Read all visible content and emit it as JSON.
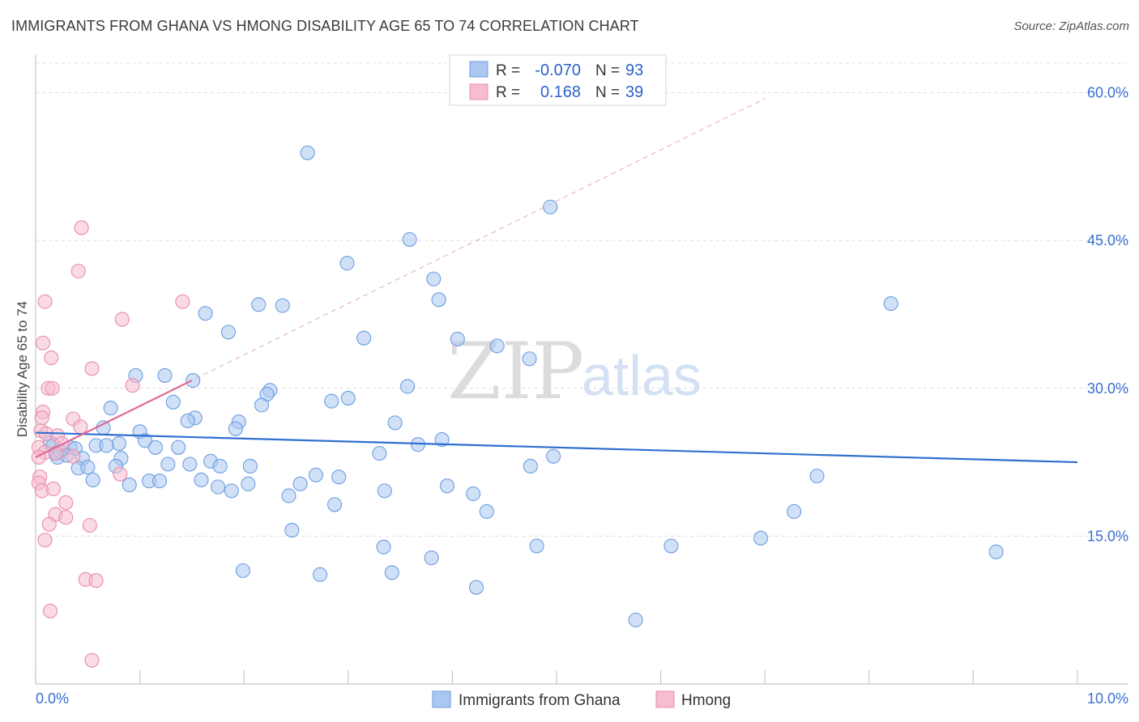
{
  "header": {
    "title": "IMMIGRANTS FROM GHANA VS HMONG DISABILITY AGE 65 TO 74 CORRELATION CHART",
    "source": "Source: ZipAtlas.com"
  },
  "watermark": {
    "zip": "ZIP",
    "atlas": "atlas"
  },
  "colors": {
    "blue_fill": "#a9c7f0",
    "blue_stroke": "#6d9ee0",
    "blue_line": "#2e6fd0",
    "pink_fill": "#f6bcd0",
    "pink_stroke": "#e88daa",
    "pink_line": "#e06a95",
    "tick_text": "#3a6fd0"
  },
  "legend_top": {
    "rows": [
      {
        "r_label": "R =",
        "r_value": "-0.070",
        "n_label": "N =",
        "n_value": "93"
      },
      {
        "r_label": "R =",
        "r_value": "0.168",
        "n_label": "N =",
        "n_value": "39"
      }
    ]
  },
  "legend_bottom": {
    "series1": "Immigrants from Ghana",
    "series2": "Hmong"
  },
  "chart_data": {
    "type": "scatter",
    "title": "IMMIGRANTS FROM GHANA VS HMONG DISABILITY AGE 65 TO 74 CORRELATION CHART",
    "xlabel": "",
    "ylabel": "Disability Age 65 to 74",
    "xlim": [
      0,
      10
    ],
    "ylim": [
      0,
      63
    ],
    "x_tick_labels": [
      "0.0%",
      "10.0%"
    ],
    "y_ticks": [
      15,
      30,
      45,
      60
    ],
    "y_tick_labels": [
      "15.0%",
      "30.0%",
      "45.0%",
      "60.0%"
    ],
    "grid": true,
    "series": [
      {
        "name": "Immigrants from Ghana",
        "r": -0.07,
        "n": 93,
        "trend": {
          "x": [
            0.0,
            10.0
          ],
          "y": [
            25.5,
            22.5
          ]
        },
        "points": [
          [
            2.61,
            53.9
          ],
          [
            4.94,
            48.4
          ],
          [
            3.59,
            45.1
          ],
          [
            2.99,
            42.7
          ],
          [
            3.82,
            41.1
          ],
          [
            8.21,
            38.6
          ],
          [
            2.14,
            38.5
          ],
          [
            2.37,
            38.4
          ],
          [
            3.87,
            39.0
          ],
          [
            1.63,
            37.6
          ],
          [
            1.85,
            35.7
          ],
          [
            3.15,
            35.1
          ],
          [
            4.05,
            35.0
          ],
          [
            4.43,
            34.3
          ],
          [
            4.74,
            33.0
          ],
          [
            0.96,
            31.3
          ],
          [
            1.24,
            31.3
          ],
          [
            1.51,
            30.8
          ],
          [
            3.57,
            30.2
          ],
          [
            2.25,
            29.8
          ],
          [
            2.22,
            29.4
          ],
          [
            3.0,
            29.0
          ],
          [
            2.84,
            28.7
          ],
          [
            1.32,
            28.6
          ],
          [
            2.17,
            28.3
          ],
          [
            0.72,
            28.0
          ],
          [
            1.53,
            27.0
          ],
          [
            1.46,
            26.7
          ],
          [
            1.95,
            26.6
          ],
          [
            3.45,
            26.5
          ],
          [
            0.65,
            26.0
          ],
          [
            1.0,
            25.6
          ],
          [
            1.92,
            25.9
          ],
          [
            1.05,
            24.7
          ],
          [
            0.8,
            24.4
          ],
          [
            0.14,
            24.5
          ],
          [
            0.17,
            24.2
          ],
          [
            0.33,
            24.0
          ],
          [
            0.38,
            23.9
          ],
          [
            0.58,
            24.2
          ],
          [
            0.68,
            24.2
          ],
          [
            1.15,
            24.0
          ],
          [
            1.37,
            24.0
          ],
          [
            3.67,
            24.3
          ],
          [
            3.9,
            24.8
          ],
          [
            0.19,
            23.4
          ],
          [
            0.21,
            23.0
          ],
          [
            0.23,
            23.6
          ],
          [
            0.3,
            23.2
          ],
          [
            0.45,
            22.9
          ],
          [
            0.82,
            22.9
          ],
          [
            1.68,
            22.6
          ],
          [
            3.3,
            23.4
          ],
          [
            4.97,
            23.1
          ],
          [
            1.27,
            22.3
          ],
          [
            1.48,
            22.3
          ],
          [
            1.77,
            22.1
          ],
          [
            2.06,
            22.1
          ],
          [
            4.75,
            22.1
          ],
          [
            0.41,
            21.9
          ],
          [
            0.5,
            22.0
          ],
          [
            0.77,
            22.1
          ],
          [
            0.55,
            20.7
          ],
          [
            1.09,
            20.6
          ],
          [
            1.19,
            20.6
          ],
          [
            1.59,
            20.7
          ],
          [
            2.54,
            20.3
          ],
          [
            2.69,
            21.2
          ],
          [
            2.91,
            21.0
          ],
          [
            7.5,
            21.1
          ],
          [
            0.9,
            20.2
          ],
          [
            1.75,
            20.0
          ],
          [
            2.04,
            20.3
          ],
          [
            1.88,
            19.6
          ],
          [
            3.35,
            19.6
          ],
          [
            3.95,
            20.1
          ],
          [
            2.43,
            19.1
          ],
          [
            4.2,
            19.3
          ],
          [
            2.87,
            18.2
          ],
          [
            4.33,
            17.5
          ],
          [
            7.28,
            17.5
          ],
          [
            2.46,
            15.6
          ],
          [
            3.34,
            13.9
          ],
          [
            4.81,
            14.0
          ],
          [
            6.1,
            14.0
          ],
          [
            6.96,
            14.8
          ],
          [
            9.22,
            13.4
          ],
          [
            3.8,
            12.8
          ],
          [
            1.99,
            11.5
          ],
          [
            2.73,
            11.1
          ],
          [
            3.42,
            11.3
          ],
          [
            4.23,
            9.8
          ],
          [
            5.76,
            6.5
          ]
        ]
      },
      {
        "name": "Hmong",
        "r": 0.168,
        "n": 39,
        "trend": {
          "x": [
            0.0,
            1.5
          ],
          "y": [
            23.0,
            30.8
          ]
        },
        "points": [
          [
            0.44,
            46.3
          ],
          [
            0.41,
            41.9
          ],
          [
            0.09,
            38.8
          ],
          [
            1.41,
            38.8
          ],
          [
            0.83,
            37.0
          ],
          [
            0.07,
            34.6
          ],
          [
            0.15,
            33.1
          ],
          [
            0.54,
            32.0
          ],
          [
            0.93,
            30.3
          ],
          [
            0.12,
            30.0
          ],
          [
            0.16,
            30.0
          ],
          [
            0.07,
            27.6
          ],
          [
            0.06,
            27.0
          ],
          [
            0.36,
            26.9
          ],
          [
            0.43,
            26.1
          ],
          [
            0.05,
            25.7
          ],
          [
            0.1,
            25.4
          ],
          [
            0.21,
            25.2
          ],
          [
            0.25,
            24.4
          ],
          [
            0.03,
            24.0
          ],
          [
            0.09,
            23.5
          ],
          [
            0.03,
            23.0
          ],
          [
            0.2,
            23.4
          ],
          [
            0.36,
            23.1
          ],
          [
            0.81,
            21.3
          ],
          [
            0.04,
            21.0
          ],
          [
            0.03,
            20.4
          ],
          [
            0.06,
            19.6
          ],
          [
            0.17,
            19.8
          ],
          [
            0.29,
            18.4
          ],
          [
            0.19,
            17.2
          ],
          [
            0.29,
            16.9
          ],
          [
            0.13,
            16.2
          ],
          [
            0.52,
            16.1
          ],
          [
            0.09,
            14.6
          ],
          [
            0.48,
            10.6
          ],
          [
            0.58,
            10.5
          ],
          [
            0.14,
            7.4
          ],
          [
            0.54,
            2.4
          ]
        ]
      }
    ]
  }
}
